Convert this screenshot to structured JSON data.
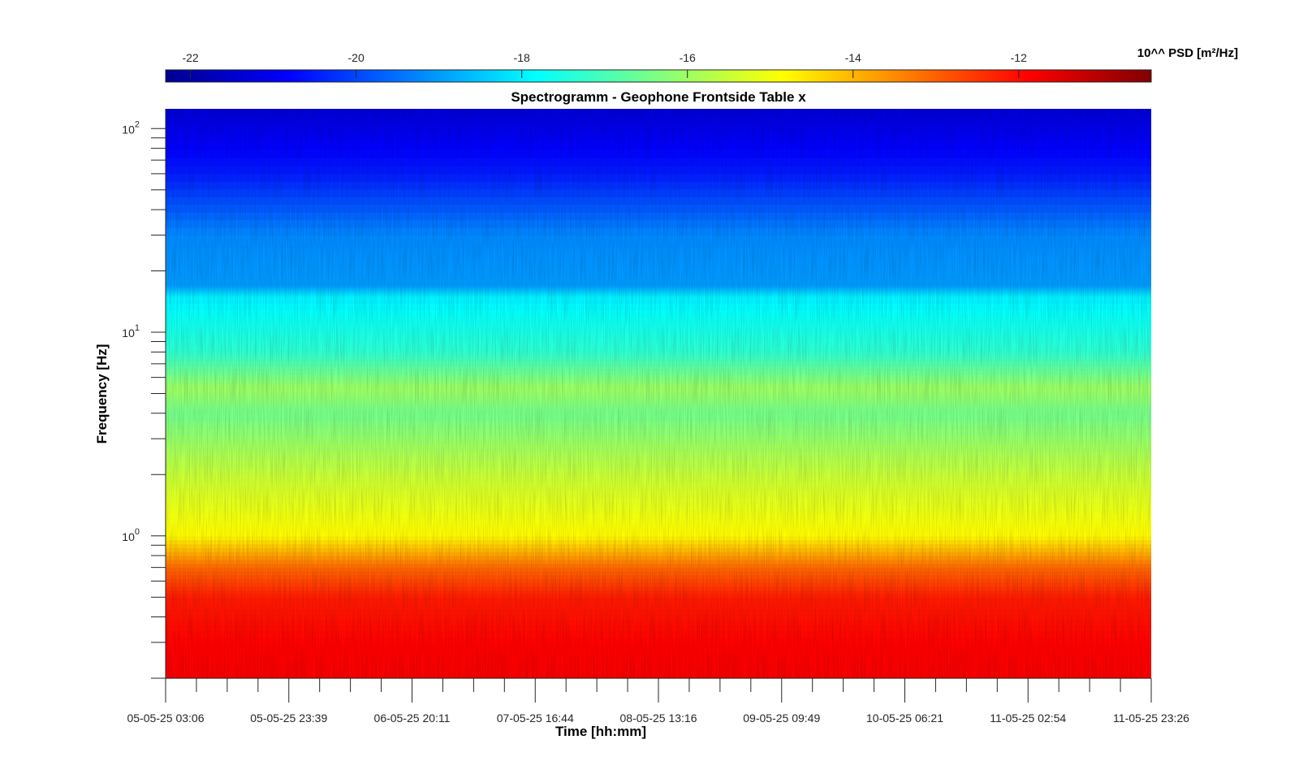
{
  "chart_data": {
    "type": "heatmap",
    "title": "Spectrogramm - Geophone Frontside Table x",
    "xlabel": "Time [hh:mm]",
    "ylabel": "Frequency [Hz]",
    "x_tick_labels": [
      "05-05-25 03:06",
      "05-05-25 23:39",
      "06-05-25 20:11",
      "07-05-25 16:44",
      "08-05-25 13:16",
      "09-05-25 09:49",
      "10-05-25 06:21",
      "11-05-25 02:54",
      "11-05-25 23:26"
    ],
    "y_scale": "log",
    "ylim": [
      0.2,
      125
    ],
    "y_ticks": [
      {
        "value": 1,
        "base": "10",
        "exp": "0"
      },
      {
        "value": 10,
        "base": "10",
        "exp": "1"
      },
      {
        "value": 100,
        "base": "10",
        "exp": "2"
      }
    ],
    "colorbar": {
      "label": "10^^ PSD [m²/Hz]",
      "range": [
        -22.3,
        -10.4
      ],
      "ticks": [
        -22,
        -20,
        -18,
        -16,
        -14,
        -12
      ],
      "tick_labels": [
        "-22",
        "-20",
        "-18",
        "-16",
        "-14",
        "-12"
      ],
      "colormap": "jet"
    },
    "psd_profile": [
      {
        "f": 0.2,
        "log_psd": -11.8
      },
      {
        "f": 0.3,
        "log_psd": -11.9
      },
      {
        "f": 0.5,
        "log_psd": -12.2
      },
      {
        "f": 0.7,
        "log_psd": -13.1
      },
      {
        "f": 1.0,
        "log_psd": -14.8
      },
      {
        "f": 2.0,
        "log_psd": -15.5
      },
      {
        "f": 4.0,
        "log_psd": -16.5
      },
      {
        "f": 5.3,
        "log_psd": -16.0
      },
      {
        "f": 8.0,
        "log_psd": -17.3
      },
      {
        "f": 15.0,
        "log_psd": -18.0
      },
      {
        "f": 17.0,
        "log_psd": -19.0
      },
      {
        "f": 30.0,
        "log_psd": -19.2
      },
      {
        "f": 60.0,
        "log_psd": -20.5
      },
      {
        "f": 125.0,
        "log_psd": -21.3
      }
    ],
    "grid": false,
    "legend": "none"
  }
}
